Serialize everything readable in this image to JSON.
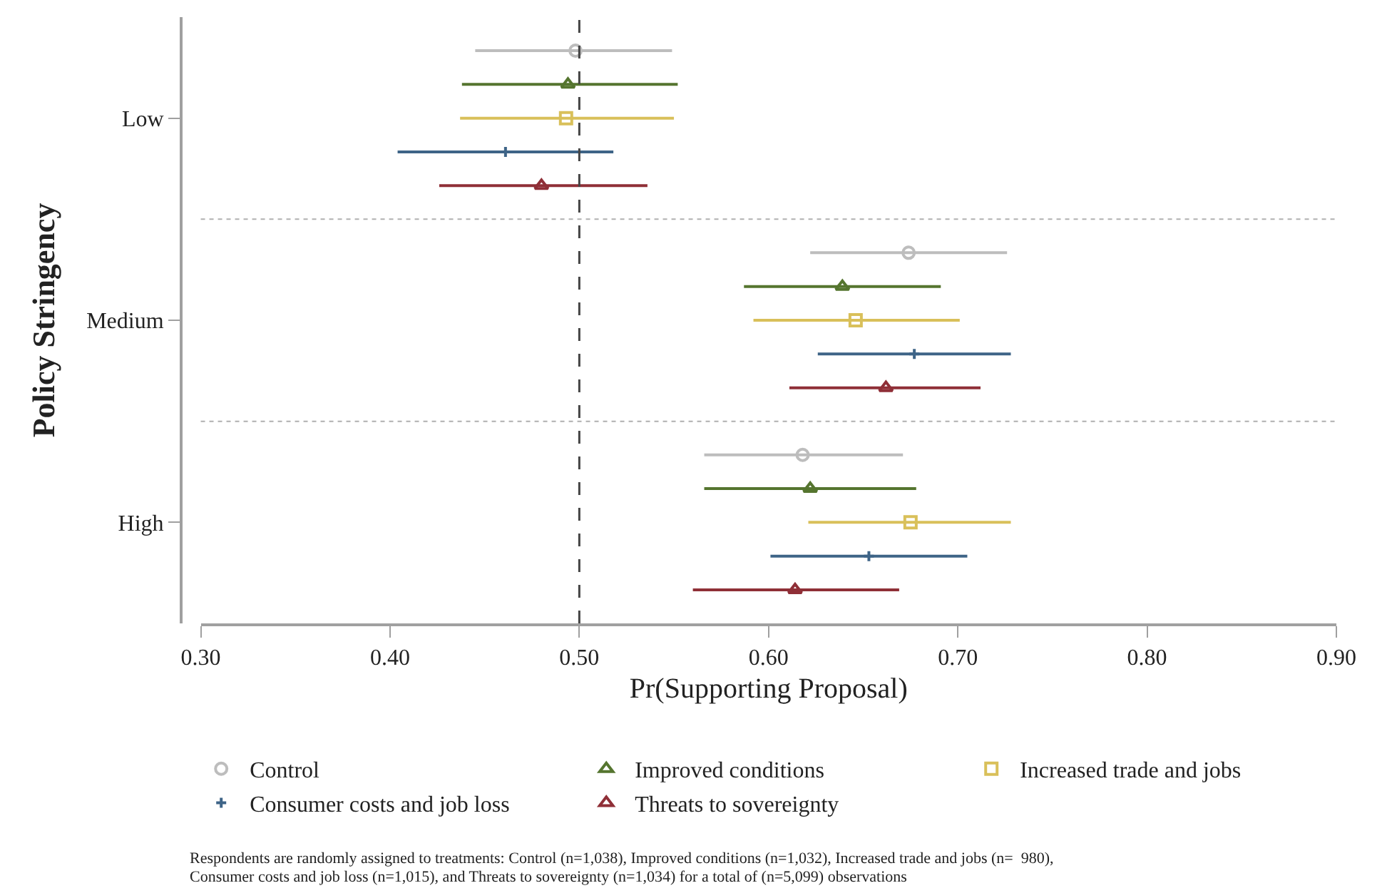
{
  "chart_data": {
    "type": "scatter",
    "orientation": "horizontal",
    "xlabel": "Pr(Supporting Proposal)",
    "ylabel": "Policy Stringency",
    "categories": [
      "Low",
      "Medium",
      "High"
    ],
    "xlim": [
      0.3,
      0.9
    ],
    "xticks": [
      {
        "value": 0.3,
        "label": "0.30"
      },
      {
        "value": 0.4,
        "label": "0.40"
      },
      {
        "value": 0.5,
        "label": "0.50"
      },
      {
        "value": 0.6,
        "label": "0.60"
      },
      {
        "value": 0.7,
        "label": "0.70"
      },
      {
        "value": 0.8,
        "label": "0.80"
      },
      {
        "value": 0.9,
        "label": "0.90"
      }
    ],
    "legend": "bottom",
    "series": [
      {
        "name": "Control",
        "color": "#bdbdbd",
        "marker": "circle",
        "values": [
          0.498,
          0.674,
          0.618
        ],
        "errors": [
          [
            0.445,
            0.549
          ],
          [
            0.622,
            0.726
          ],
          [
            0.566,
            0.671
          ]
        ]
      },
      {
        "name": "Improved conditions",
        "color": "#55752f",
        "marker": "triangle",
        "values": [
          0.494,
          0.639,
          0.622
        ],
        "errors": [
          [
            0.438,
            0.552
          ],
          [
            0.587,
            0.691
          ],
          [
            0.566,
            0.678
          ]
        ]
      },
      {
        "name": "Increased trade and jobs",
        "color": "#d9c05a",
        "marker": "square",
        "values": [
          0.493,
          0.646,
          0.675
        ],
        "errors": [
          [
            0.437,
            0.55
          ],
          [
            0.592,
            0.701
          ],
          [
            0.621,
            0.728
          ]
        ]
      },
      {
        "name": "Consumer costs and job loss",
        "color": "#3e6487",
        "marker": "cross",
        "values": [
          0.461,
          0.677,
          0.653
        ],
        "errors": [
          [
            0.404,
            0.518
          ],
          [
            0.626,
            0.728
          ],
          [
            0.601,
            0.705
          ]
        ]
      },
      {
        "name": "Threats to sovereignty",
        "color": "#8f2f37",
        "marker": "triangle",
        "values": [
          0.48,
          0.662,
          0.614
        ],
        "errors": [
          [
            0.426,
            0.536
          ],
          [
            0.611,
            0.712
          ],
          [
            0.56,
            0.669
          ]
        ]
      }
    ],
    "ref_lines": [
      {
        "axis": "x",
        "value": 0.5,
        "color": "#444444",
        "line_style": "dashed"
      }
    ],
    "annotations": [
      "Respondents are randomly assigned to treatments: Control (n=1,038), Improved conditions (n=1,032), Increased trade and jobs (n=  980),",
      "Consumer costs and job loss (n=1,015), and Threats to sovereignty (n=1,034) for a total of (n=5,099) observations"
    ]
  }
}
